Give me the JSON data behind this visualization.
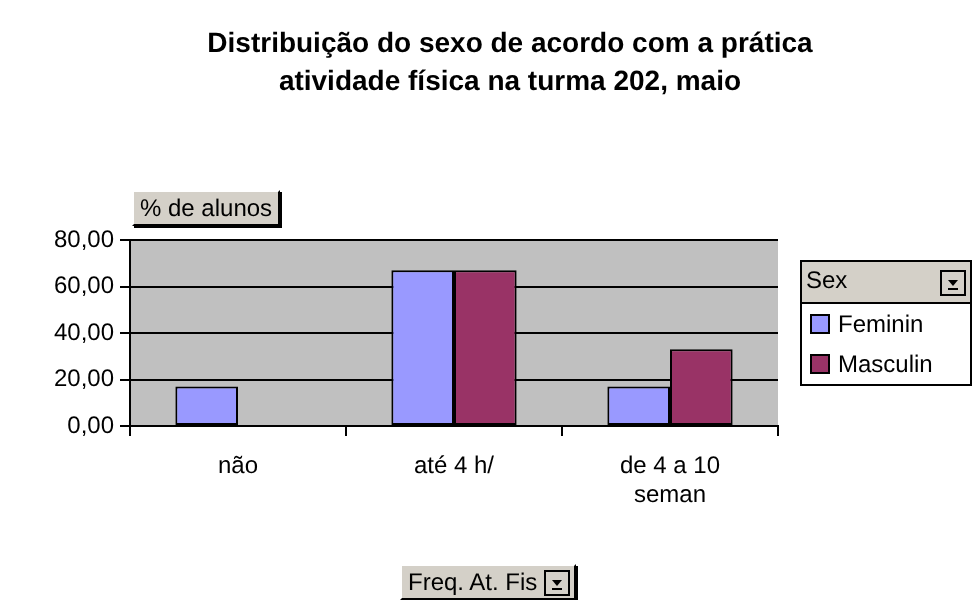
{
  "chart_data": {
    "type": "bar",
    "title": "Distribuição do sexo de acordo com a prática atividade física na turma 202, maio",
    "ylabel": "% de alunos",
    "xlabel": "Freq. At. Fis",
    "legend_title": "Sex",
    "categories": [
      "não",
      "até 4 h/",
      "de 4 a 10 seman"
    ],
    "series": [
      {
        "name": "Feminin",
        "color": "#9999ff",
        "values": [
          17,
          67,
          17
        ]
      },
      {
        "name": "Masculin",
        "color": "#993366",
        "values": [
          0,
          67,
          33
        ]
      }
    ],
    "ylim": [
      0,
      80
    ],
    "yticks": [
      {
        "value": 0,
        "label": "0,00"
      },
      {
        "value": 20,
        "label": "20,00"
      },
      {
        "value": 40,
        "label": "40,00"
      },
      {
        "value": 60,
        "label": "60,00"
      },
      {
        "value": 80,
        "label": "80,00"
      }
    ],
    "grid": "y",
    "legend": "right"
  }
}
